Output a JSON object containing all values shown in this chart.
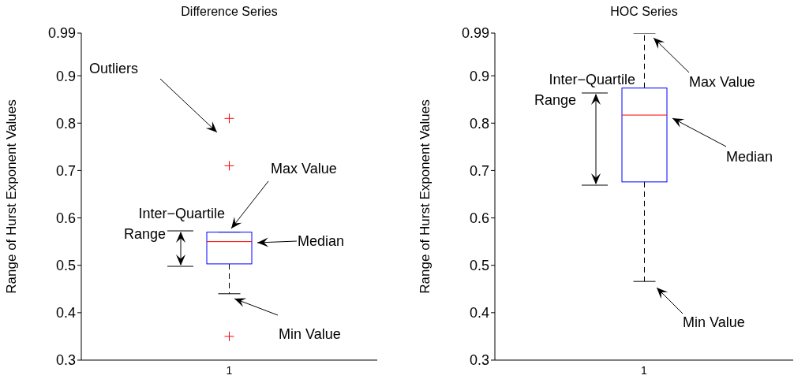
{
  "chart_data": [
    {
      "type": "box",
      "title": "Difference Series",
      "ylabel": "Range of Hurst Exponent Values",
      "categories": [
        "1"
      ],
      "boxes": [
        {
          "low": 0.44,
          "q1": 0.503,
          "median": 0.55,
          "q3": 0.57,
          "high": 0.57,
          "outliers": [
            0.81,
            0.71,
            0.35
          ]
        }
      ],
      "ylim": [
        0.3,
        0.99
      ],
      "yticks": [
        0.3,
        0.4,
        0.5,
        0.6,
        0.7,
        0.8,
        0.9,
        0.99
      ],
      "annotations": [
        "Outliers",
        "Max Value",
        "Median",
        "Min Value",
        "Inter−Quartile Range"
      ]
    },
    {
      "type": "box",
      "title": "HOC Series",
      "ylabel": "Range of Hurst Exponent Values",
      "categories": [
        "1"
      ],
      "boxes": [
        {
          "low": 0.466,
          "q1": 0.676,
          "median": 0.817,
          "q3": 0.874,
          "high": 0.99
        }
      ],
      "ylim": [
        0.3,
        0.99
      ],
      "yticks": [
        0.3,
        0.4,
        0.5,
        0.6,
        0.7,
        0.8,
        0.9,
        0.99
      ],
      "annotations": [
        "Max Value",
        "Median",
        "Min Value",
        "Inter−Quartile Range"
      ]
    }
  ]
}
